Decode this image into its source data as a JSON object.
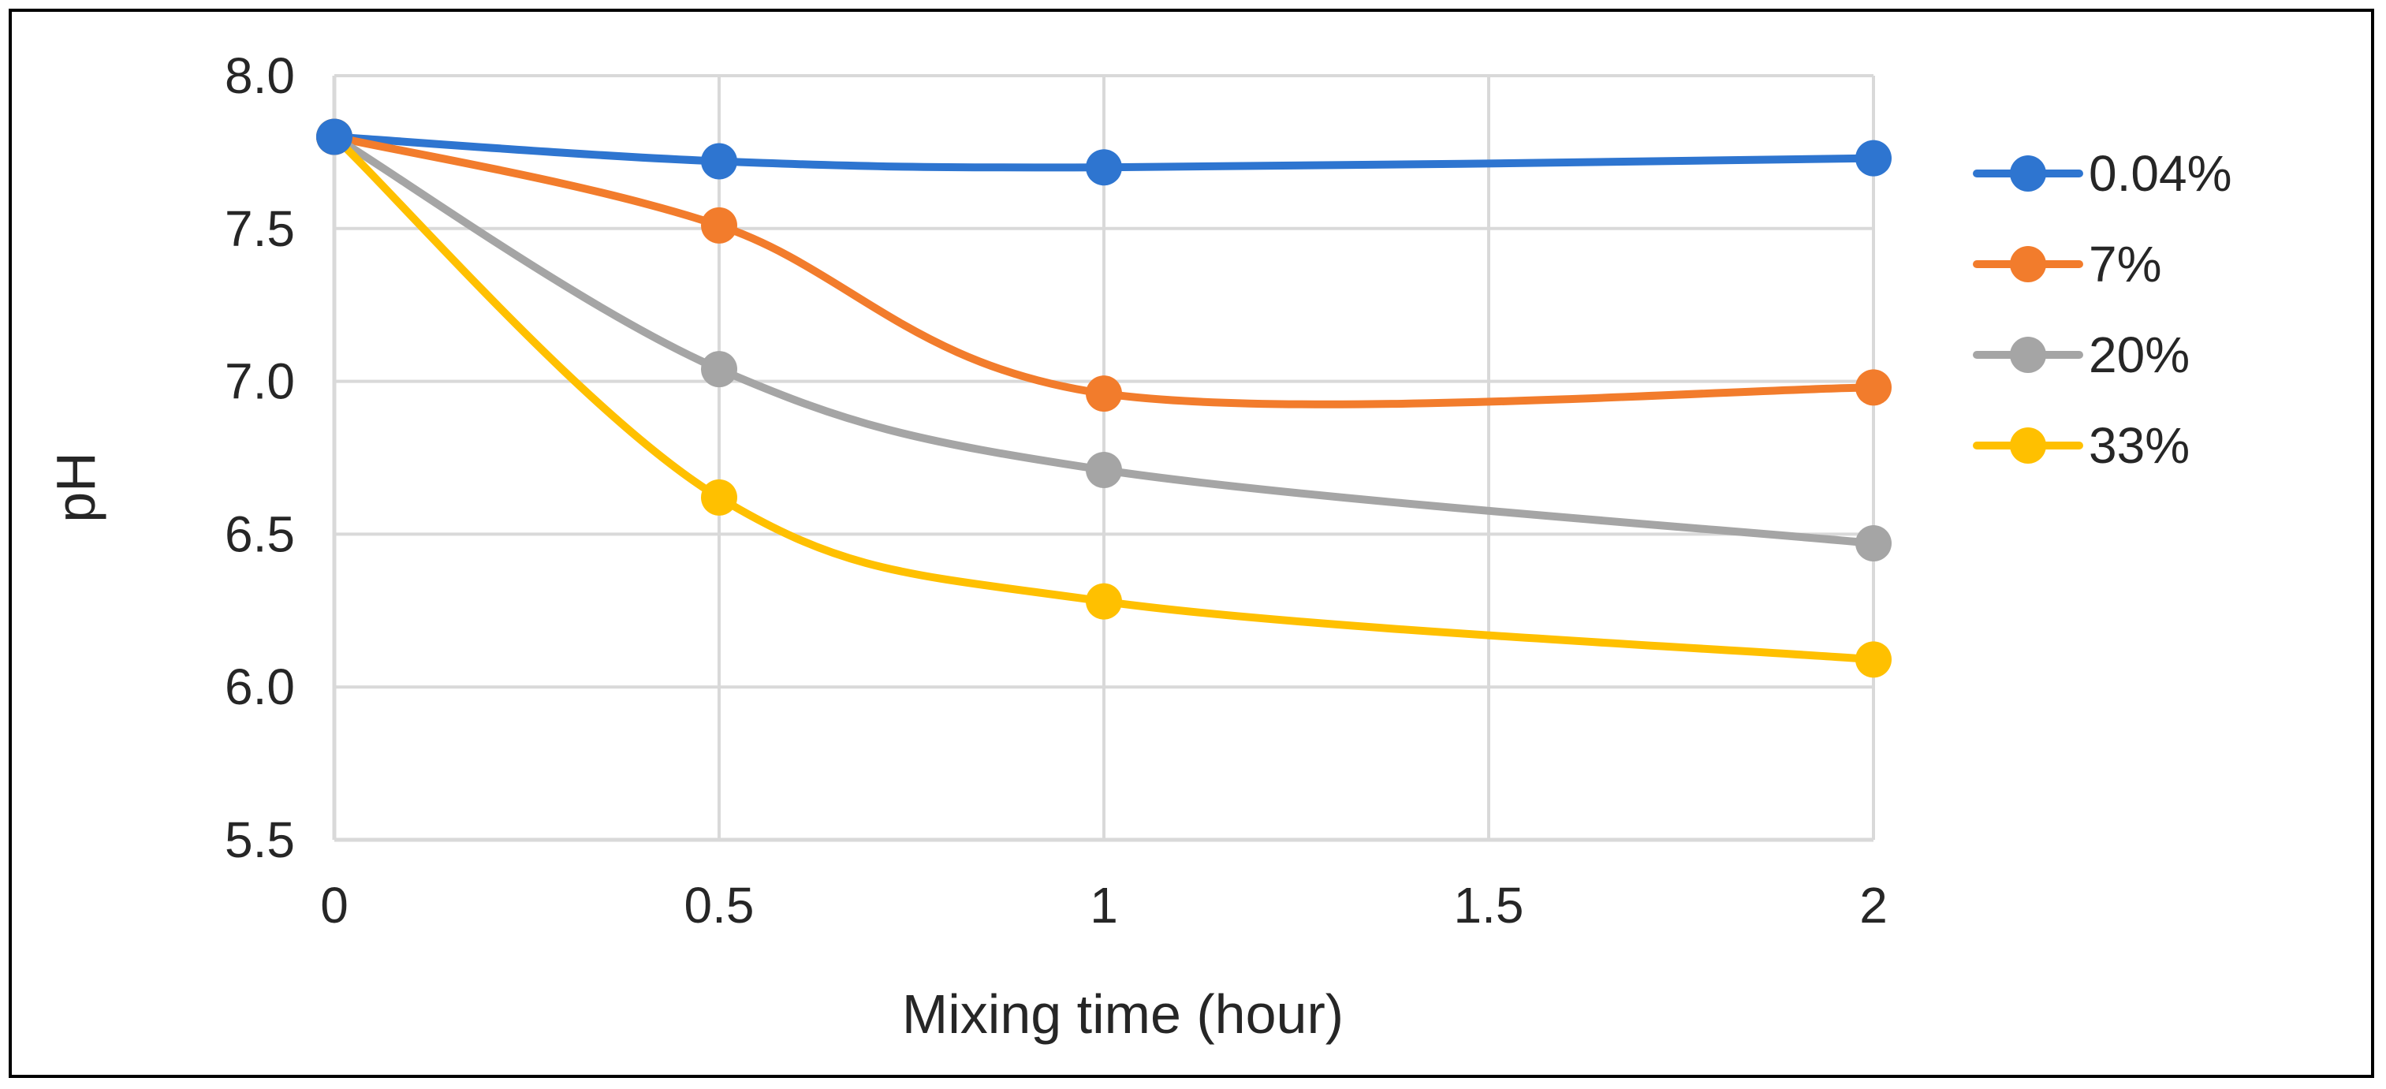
{
  "chart_data": {
    "type": "line",
    "smooth": true,
    "title": "",
    "xlabel": "Mixing time (hour)",
    "ylabel": "pH",
    "x": [
      0,
      0.5,
      1,
      2
    ],
    "xlim": [
      0,
      2
    ],
    "ylim": [
      5.5,
      8.0
    ],
    "x_ticks": [
      "0",
      "0.5",
      "1",
      "1.5",
      "2"
    ],
    "y_ticks": [
      "5.5",
      "6.0",
      "6.5",
      "7.0",
      "7.5",
      "8.0"
    ],
    "grid": true,
    "legend_position": "right",
    "series": [
      {
        "name": "0.04%",
        "color": "#2E75D0",
        "values": [
          7.8,
          7.72,
          7.7,
          7.73
        ]
      },
      {
        "name": "7%",
        "color": "#F27C2C",
        "values": [
          7.8,
          7.51,
          6.96,
          6.98
        ]
      },
      {
        "name": "20%",
        "color": "#A5A5A5",
        "values": [
          7.8,
          7.04,
          6.71,
          6.47
        ]
      },
      {
        "name": "33%",
        "color": "#FFC000",
        "values": [
          7.8,
          6.62,
          6.28,
          6.09
        ]
      }
    ]
  }
}
